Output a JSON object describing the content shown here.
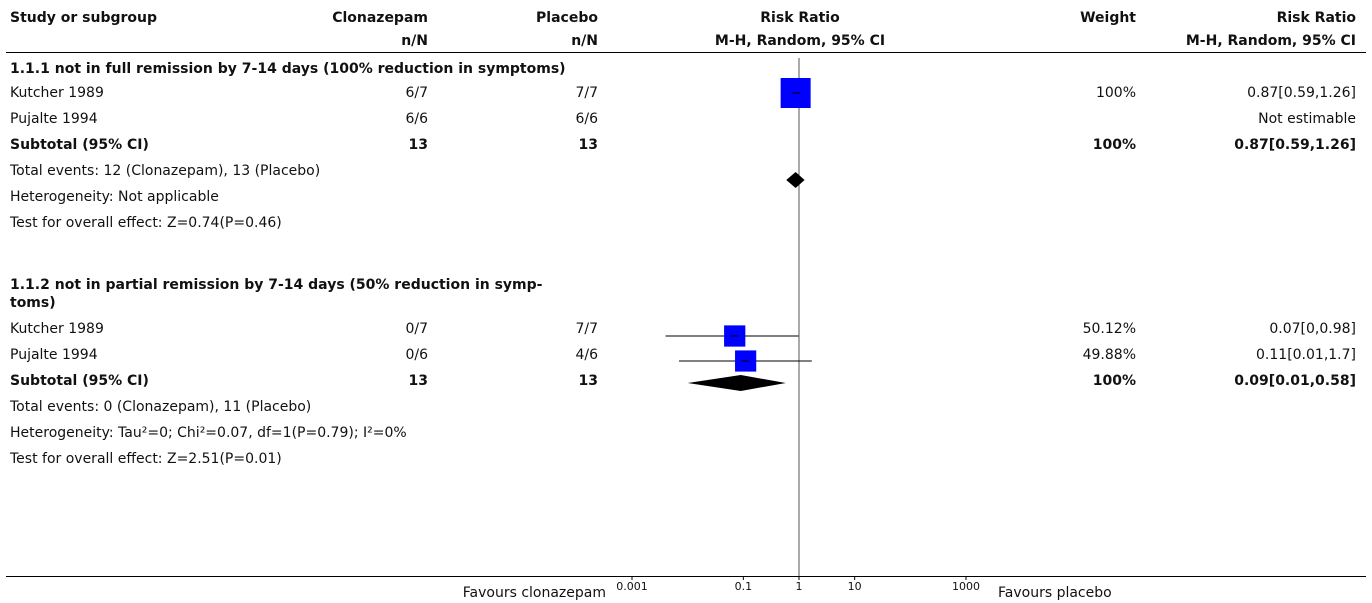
{
  "header": {
    "col_study": "Study or subgroup",
    "col_clon": "Clonazepam",
    "col_clon_sub": "n/N",
    "col_plac": "Placebo",
    "col_plac_sub": "n/N",
    "col_rr": "Risk Ratio",
    "col_rr_sub": "M-H, Random, 95% CI",
    "col_weight": "Weight",
    "col_rr2": "Risk Ratio",
    "col_rr2_sub": "M-H, Random, 95% CI"
  },
  "groups": [
    {
      "title": "1.1.1 not in full remission by 7-14 days (100% reduction in symptoms)",
      "studies": [
        {
          "name": "Kutcher 1989",
          "clon": "6/7",
          "plac": "7/7",
          "weight": "100%",
          "ci": "0.87[0.59,1.26]"
        },
        {
          "name": "Pujalte 1994",
          "clon": "6/6",
          "plac": "6/6",
          "weight": "",
          "ci": "Not estimable"
        }
      ],
      "subtotal": {
        "label": "Subtotal (95% CI)",
        "clon": "13",
        "plac": "13",
        "weight": "100%",
        "ci": "0.87[0.59,1.26]"
      },
      "total_events": "Total events: 12 (Clonazepam), 13 (Placebo)",
      "heterogeneity": "Heterogeneity: Not applicable",
      "overall": "Test for overall effect: Z=0.74(P=0.46)"
    },
    {
      "title_line1": "1.1.2 not in partial remission by 7-14 days (50% reduction in symp-",
      "title_line2": "toms)",
      "studies": [
        {
          "name": "Kutcher 1989",
          "clon": "0/7",
          "plac": "7/7",
          "weight": "50.12%",
          "ci": "0.07[0,0.98]"
        },
        {
          "name": "Pujalte 1994",
          "clon": "0/6",
          "plac": "4/6",
          "weight": "49.88%",
          "ci": "0.11[0.01,1.7]"
        }
      ],
      "subtotal": {
        "label": "Subtotal (95% CI)",
        "clon": "13",
        "plac": "13",
        "weight": "100%",
        "ci": "0.09[0.01,0.58]"
      },
      "total_events": "Total events: 0 (Clonazepam), 11 (Placebo)",
      "heterogeneity": "Heterogeneity: Tau²=0; Chi²=0.07, df=1(P=0.79); I²=0%",
      "overall": "Test for overall effect: Z=2.51(P=0.01)"
    }
  ],
  "footer": {
    "favours_left": "Favours clonazepam",
    "favours_right": "Favours placebo"
  },
  "chart_data": {
    "type": "forest",
    "scale": "log",
    "xlim": [
      0.001,
      1000
    ],
    "ticks": [
      {
        "value": 0.001,
        "label": "0.001"
      },
      {
        "value": 0.1,
        "label": "0.1"
      },
      {
        "value": 1,
        "label": "1"
      },
      {
        "value": 10,
        "label": "10"
      },
      {
        "value": 1000,
        "label": "1000"
      }
    ],
    "estimates": [
      {
        "study": "Kutcher 1989",
        "group": "1.1.1",
        "rr": 0.87,
        "lower": 0.59,
        "upper": 1.26,
        "weight": 100,
        "kind": "study"
      },
      {
        "study": "Pujalte 1994",
        "group": "1.1.1",
        "rr": null,
        "lower": null,
        "upper": null,
        "weight": null,
        "kind": "none"
      },
      {
        "study": "Subtotal (95% CI)",
        "group": "1.1.1",
        "rr": 0.87,
        "lower": 0.59,
        "upper": 1.26,
        "weight": 100,
        "kind": "subtotal"
      },
      {
        "study": "Kutcher 1989",
        "group": "1.1.2",
        "rr": 0.07,
        "lower": 0.004,
        "upper": 0.98,
        "weight": 50.12,
        "kind": "study"
      },
      {
        "study": "Pujalte 1994",
        "group": "1.1.2",
        "rr": 0.11,
        "lower": 0.007,
        "upper": 1.7,
        "weight": 49.88,
        "kind": "study"
      },
      {
        "study": "Subtotal (95% CI)",
        "group": "1.1.2",
        "rr": 0.09,
        "lower": 0.01,
        "upper": 0.58,
        "weight": 100,
        "kind": "subtotal"
      }
    ],
    "colors": {
      "square": "#0000ff",
      "diamond": "#000000",
      "line": "#000000"
    }
  }
}
